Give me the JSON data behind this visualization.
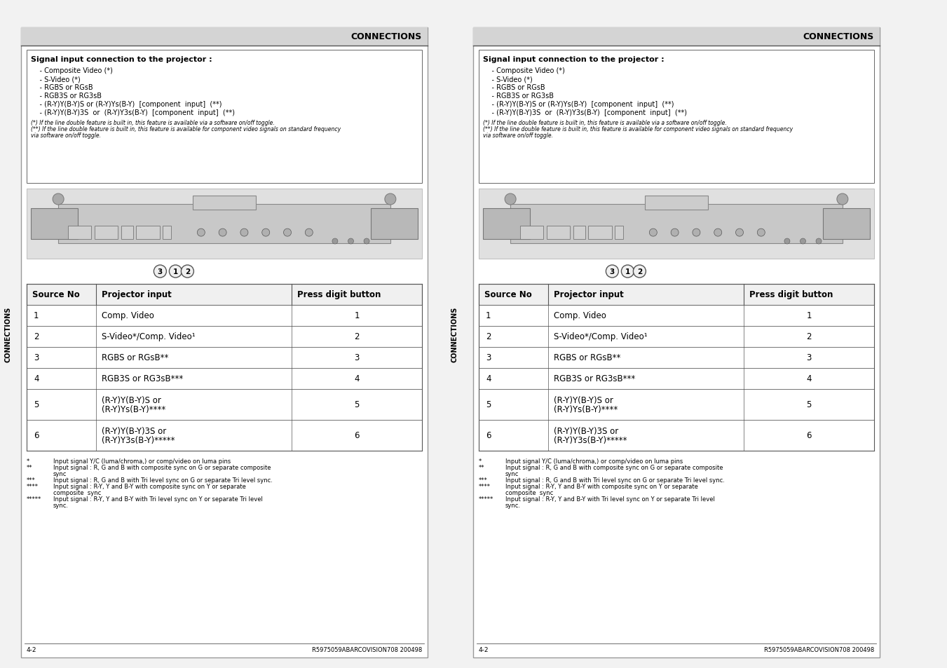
{
  "bg_color": "#f2f2f2",
  "panel_bg": "#ffffff",
  "header_bg": "#d4d4d4",
  "header_text": "CONNECTIONS",
  "title_text": "Signal input connection to the projector :",
  "bullet_lines": [
    "    - Composite Video (*)",
    "    - S-Video (*)",
    "    - RGBS or RGsB",
    "    - RGB3S or RG3sB",
    "    - (R-Y)Y(B-Y)S or (R-Y)Ys(B-Y)  [component  input]  (**)",
    "    - (R-Y)Y(B-Y)3S  or  (R-Y)Y3s(B-Y)  [component  input]  (**)"
  ],
  "note1": "(*) If the line double feature is built in, this feature is available via a software on/off toggle.",
  "note2": "(**) If the line double feature is built in, this feature is available for component video signals on standard frequency",
  "note3": "via software on/off toggle.",
  "table_headers": [
    "Source No",
    "Projector input",
    "Press digit button"
  ],
  "table_rows": [
    [
      "1",
      "Comp. Video",
      "1"
    ],
    [
      "2",
      "S-Video*/Comp. Video¹",
      "2"
    ],
    [
      "3",
      "RGBS or RGsB**",
      "3"
    ],
    [
      "4",
      "RGB3S or RG3sB***",
      "4"
    ],
    [
      "5",
      "(R-Y)Y(B-Y)S or\n(R-Y)Ys(B-Y)****",
      "5"
    ],
    [
      "6",
      "(R-Y)Y(B-Y)3S or\n(R-Y)Y3s(B-Y)*****",
      "6"
    ]
  ],
  "footer_notes": [
    [
      "*",
      "Input signal Y/C (luma/chroma,) or comp/video on luma pins"
    ],
    [
      "**",
      "Input signal : R, G and B with composite sync on G or separate composite\nsync"
    ],
    [
      "***",
      "Input signal : R, G and B with Tri level sync on G or separate Tri level sync."
    ],
    [
      "****",
      "Input signal : R-Y, Y and B-Y with composite sync on Y or separate\ncomposite  sync"
    ],
    [
      "*****",
      "Input signal : R-Y, Y and B-Y with Tri level sync on Y or separate Tri level\nsync."
    ]
  ],
  "page_num": "4-2",
  "doc_code": "R5975059ABARCOVISION708 200498",
  "side_text": "CONNECTIONS",
  "circle_labels": [
    "3",
    "1",
    "2"
  ]
}
